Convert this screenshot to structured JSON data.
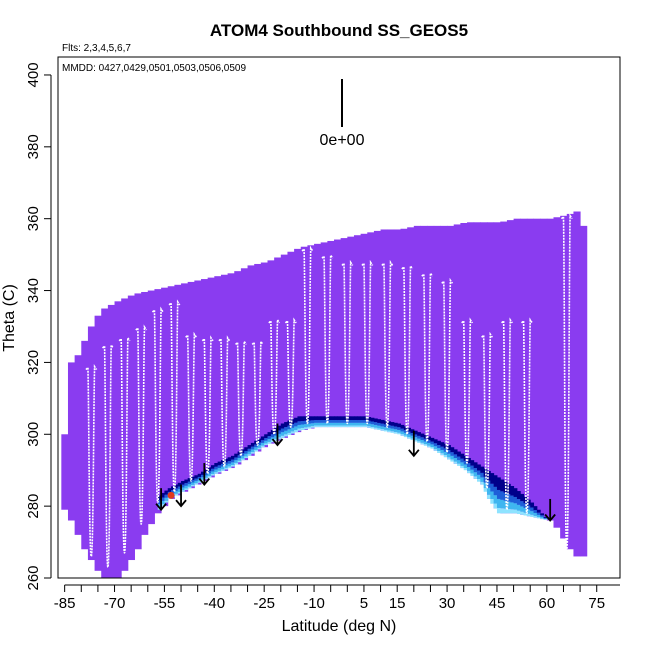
{
  "chart_data": {
    "type": "heatmap",
    "title": "ATOM4 Southbound SS_GEOS5",
    "flights_note": "Flts: 2,3,4,5,6,7",
    "dates_note": "MMDD: 0427,0429,0501,0503,0506,0509",
    "xlabel": "Latitude (deg N)",
    "ylabel": "Theta (C)",
    "xlim": [
      -87,
      82
    ],
    "ylim": [
      260,
      405
    ],
    "xticks": [
      -85,
      -70,
      -55,
      -40,
      -25,
      -10,
      5,
      15,
      30,
      45,
      60,
      75
    ],
    "xtick_labels": [
      "-85",
      "-70",
      "-55",
      "-40",
      "-25",
      "-10",
      "5",
      "15",
      "30",
      "45",
      "60",
      "75"
    ],
    "yticks": [
      260,
      280,
      300,
      320,
      340,
      360,
      380,
      400
    ],
    "ytick_labels": [
      "260",
      "280",
      "300",
      "320",
      "340",
      "360",
      "380",
      "400"
    ],
    "scale_label": "0e+00",
    "colors": {
      "field_purple": "#8a3cf0",
      "band_dark": "#00008b",
      "band_mid": "#1e5fd8",
      "band_light": "#3fb6f0",
      "band_cyan": "#8ee3ff",
      "trace": "#ffffff",
      "arrow": "#000000",
      "marker": "#e03a1e"
    },
    "field_top": [
      [
        -86,
        300
      ],
      [
        -84,
        320
      ],
      [
        -82,
        322
      ],
      [
        -80,
        326
      ],
      [
        -78,
        330
      ],
      [
        -76,
        333
      ],
      [
        -74,
        335
      ],
      [
        -72,
        336
      ],
      [
        -70,
        337
      ],
      [
        -65,
        339
      ],
      [
        -60,
        340
      ],
      [
        -55,
        341
      ],
      [
        -50,
        342
      ],
      [
        -45,
        343
      ],
      [
        -40,
        344
      ],
      [
        -35,
        345
      ],
      [
        -30,
        347
      ],
      [
        -25,
        348
      ],
      [
        -20,
        350
      ],
      [
        -15,
        352
      ],
      [
        -10,
        353
      ],
      [
        -5,
        354
      ],
      [
        0,
        355
      ],
      [
        5,
        356
      ],
      [
        10,
        357
      ],
      [
        15,
        357
      ],
      [
        20,
        358
      ],
      [
        25,
        358
      ],
      [
        30,
        358
      ],
      [
        35,
        359
      ],
      [
        40,
        359
      ],
      [
        45,
        359
      ],
      [
        50,
        360
      ],
      [
        55,
        360
      ],
      [
        60,
        360
      ],
      [
        65,
        361
      ],
      [
        68,
        362
      ],
      [
        70,
        358
      ],
      [
        72,
        340
      ]
    ],
    "field_bottom": [
      [
        -86,
        279
      ],
      [
        -84,
        276
      ],
      [
        -82,
        272
      ],
      [
        -80,
        268
      ],
      [
        -78,
        265
      ],
      [
        -76,
        262
      ],
      [
        -74,
        260
      ],
      [
        -72,
        260
      ],
      [
        -70,
        260
      ],
      [
        -68,
        262
      ],
      [
        -66,
        265
      ],
      [
        -64,
        268
      ],
      [
        -62,
        272
      ],
      [
        -60,
        275
      ],
      [
        -58,
        278
      ],
      [
        -56,
        280
      ],
      [
        -54,
        282
      ],
      [
        -52,
        283
      ],
      [
        -50,
        284
      ],
      [
        -48,
        285
      ],
      [
        -46,
        286
      ],
      [
        -44,
        287
      ],
      [
        -42,
        288
      ],
      [
        -40,
        289
      ],
      [
        -35,
        291
      ],
      [
        -30,
        294
      ],
      [
        -25,
        297
      ],
      [
        -20,
        299
      ],
      [
        -15,
        301
      ],
      [
        -10,
        302
      ],
      [
        -5,
        302
      ],
      [
        0,
        302
      ],
      [
        5,
        302
      ],
      [
        10,
        301
      ],
      [
        15,
        300
      ],
      [
        20,
        298
      ],
      [
        25,
        296
      ],
      [
        30,
        293
      ],
      [
        35,
        290
      ],
      [
        40,
        286
      ],
      [
        42,
        282
      ],
      [
        45,
        278
      ],
      [
        50,
        278
      ],
      [
        55,
        277
      ],
      [
        60,
        276
      ],
      [
        62,
        274
      ],
      [
        64,
        271
      ],
      [
        66,
        268
      ],
      [
        68,
        266
      ],
      [
        70,
        266
      ],
      [
        72,
        266
      ]
    ],
    "band_top": [
      [
        -57,
        283
      ],
      [
        -54,
        285
      ],
      [
        -50,
        287
      ],
      [
        -45,
        289
      ],
      [
        -40,
        292
      ],
      [
        -35,
        294
      ],
      [
        -30,
        297
      ],
      [
        -25,
        300
      ],
      [
        -20,
        303
      ],
      [
        -15,
        305
      ],
      [
        -10,
        305
      ],
      [
        -5,
        305
      ],
      [
        0,
        305
      ],
      [
        5,
        305
      ],
      [
        10,
        304
      ],
      [
        15,
        303
      ],
      [
        20,
        301
      ],
      [
        25,
        299
      ],
      [
        30,
        297
      ],
      [
        35,
        294
      ],
      [
        40,
        291
      ],
      [
        45,
        288
      ],
      [
        50,
        285
      ],
      [
        55,
        281
      ],
      [
        58,
        278
      ],
      [
        60,
        276
      ]
    ],
    "traces": [
      {
        "lat": -77,
        "top": 318,
        "bottom": 265
      },
      {
        "lat": -72,
        "top": 324,
        "bottom": 262
      },
      {
        "lat": -67,
        "top": 326,
        "bottom": 266
      },
      {
        "lat": -62,
        "top": 329,
        "bottom": 274
      },
      {
        "lat": -57,
        "top": 334,
        "bottom": 280
      },
      {
        "lat": -52,
        "top": 336,
        "bottom": 283
      },
      {
        "lat": -47,
        "top": 327,
        "bottom": 286
      },
      {
        "lat": -42,
        "top": 326,
        "bottom": 288
      },
      {
        "lat": -37,
        "top": 326,
        "bottom": 290
      },
      {
        "lat": -32,
        "top": 325,
        "bottom": 293
      },
      {
        "lat": -27,
        "top": 325,
        "bottom": 296
      },
      {
        "lat": -22,
        "top": 331,
        "bottom": 299
      },
      {
        "lat": -17,
        "top": 331,
        "bottom": 301
      },
      {
        "lat": -12,
        "top": 351,
        "bottom": 302
      },
      {
        "lat": -6,
        "top": 349,
        "bottom": 302
      },
      {
        "lat": 0,
        "top": 347,
        "bottom": 302
      },
      {
        "lat": 6,
        "top": 347,
        "bottom": 302
      },
      {
        "lat": 12,
        "top": 347,
        "bottom": 301
      },
      {
        "lat": 18,
        "top": 346,
        "bottom": 299
      },
      {
        "lat": 24,
        "top": 344,
        "bottom": 297
      },
      {
        "lat": 30,
        "top": 342,
        "bottom": 294
      },
      {
        "lat": 36,
        "top": 331,
        "bottom": 291
      },
      {
        "lat": 42,
        "top": 327,
        "bottom": 284
      },
      {
        "lat": 48,
        "top": 331,
        "bottom": 278
      },
      {
        "lat": 54,
        "top": 331,
        "bottom": 277
      },
      {
        "lat": 66,
        "top": 360,
        "bottom": 267
      }
    ],
    "arrows": [
      {
        "lat": -56,
        "theta_top": 285,
        "theta_bottom": 279
      },
      {
        "lat": -50,
        "theta_top": 286,
        "theta_bottom": 280
      },
      {
        "lat": -43,
        "theta_top": 292,
        "theta_bottom": 286
      },
      {
        "lat": -21,
        "theta_top": 303,
        "theta_bottom": 297
      },
      {
        "lat": 20,
        "theta_top": 301,
        "theta_bottom": 294
      },
      {
        "lat": 61,
        "theta_top": 282,
        "theta_bottom": 276
      }
    ],
    "marker": {
      "lat": -53,
      "theta": 283
    }
  }
}
